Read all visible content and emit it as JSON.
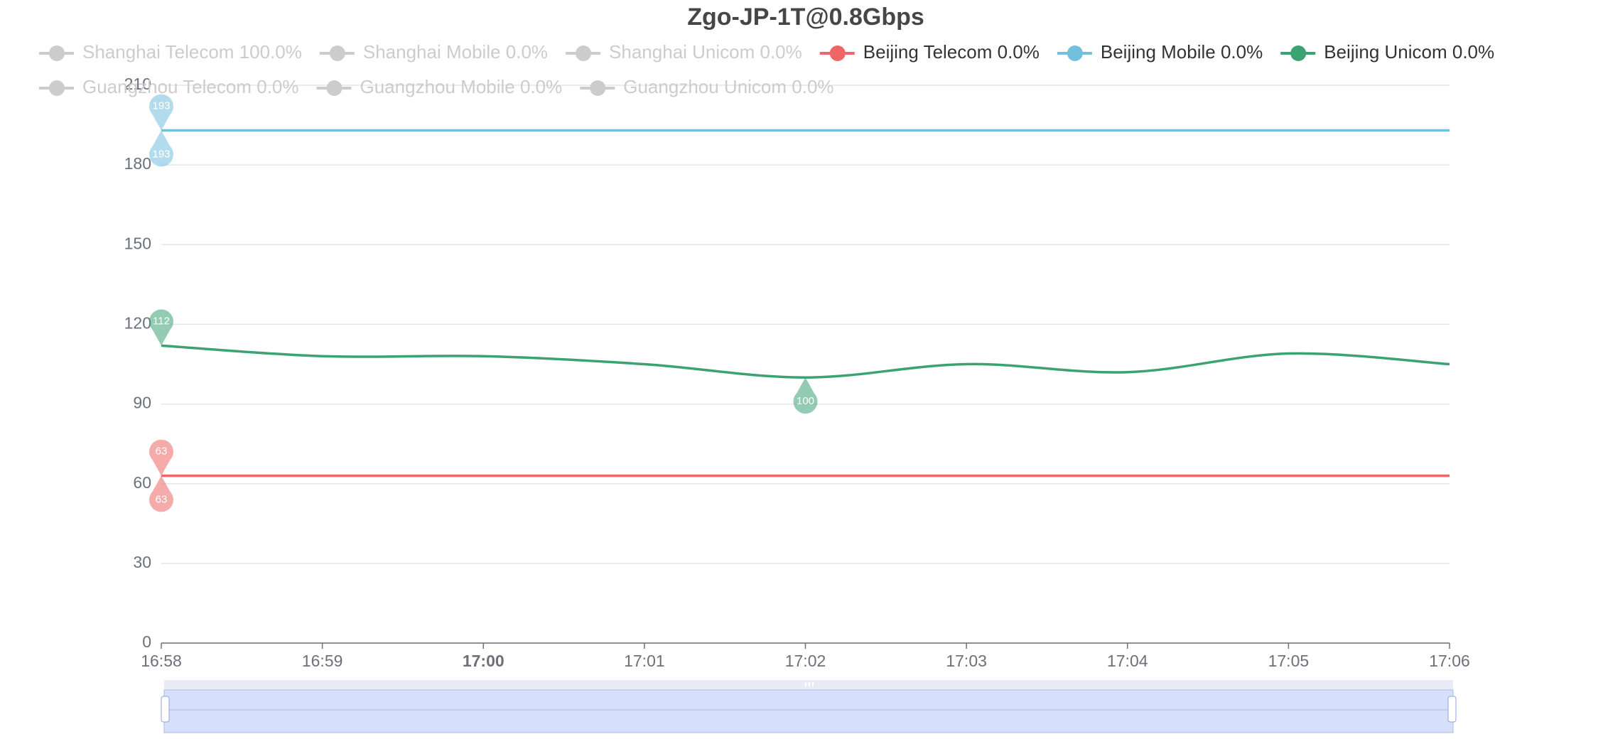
{
  "chart_data": {
    "type": "line",
    "title": "Zgo-JP-1T@0.8Gbps",
    "categories": [
      "16:58",
      "16:59",
      "17:00",
      "17:01",
      "17:02",
      "17:03",
      "17:04",
      "17:05",
      "17:06"
    ],
    "bold_category_index": 2,
    "series": [
      {
        "name": "Shanghai Telecom 100.0%",
        "color": "#cccccc",
        "visible": false
      },
      {
        "name": "Shanghai Mobile 0.0%",
        "color": "#cccccc",
        "visible": false
      },
      {
        "name": "Shanghai Unicom 0.0%",
        "color": "#cccccc",
        "visible": false
      },
      {
        "name": "Beijing Telecom 0.0%",
        "color": "#ee6666",
        "visible": true,
        "values": [
          63,
          63,
          63,
          63,
          63,
          63,
          63,
          63,
          63
        ]
      },
      {
        "name": "Beijing Mobile 0.0%",
        "color": "#73c0de",
        "visible": true,
        "values": [
          193,
          193,
          193,
          193,
          193,
          193,
          193,
          193,
          193
        ]
      },
      {
        "name": "Beijing Unicom 0.0%",
        "color": "#3ba272",
        "visible": true,
        "values": [
          112,
          108,
          108,
          105,
          100,
          105,
          102,
          109,
          105
        ]
      },
      {
        "name": "Guangzhou Telecom 0.0%",
        "color": "#cccccc",
        "visible": false
      },
      {
        "name": "Guangzhou Mobile 0.0%",
        "color": "#cccccc",
        "visible": false
      },
      {
        "name": "Guangzhou Unicom 0.0%",
        "color": "#cccccc",
        "visible": false
      }
    ],
    "mark_points": [
      "max",
      "min"
    ],
    "smooth": true,
    "ylim": [
      0,
      210
    ],
    "yticks": [
      0,
      30,
      60,
      90,
      120,
      150,
      180,
      210
    ],
    "grid": true
  }
}
